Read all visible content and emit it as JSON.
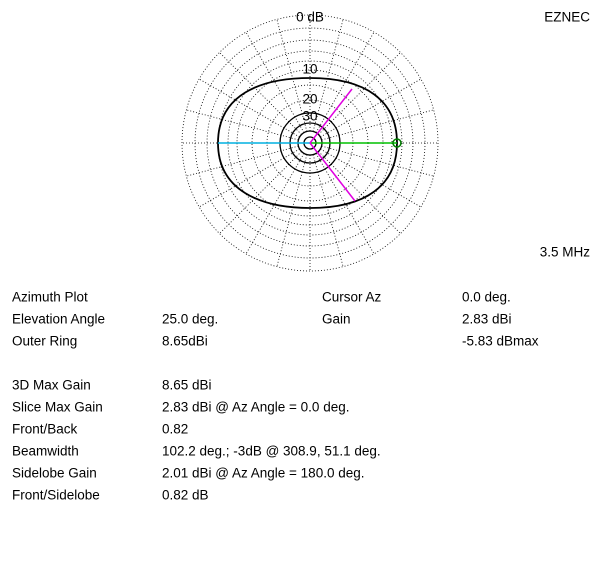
{
  "header": {
    "program": "EZNEC",
    "frequency": "3.5 MHz"
  },
  "plot": {
    "ring_labels": [
      "0 dB",
      "10",
      "20",
      "30"
    ]
  },
  "cursor_block": {
    "left": [
      {
        "label": "Azimuth Plot"
      },
      {
        "label": "Elevation Angle",
        "value": "25.0 deg."
      },
      {
        "label": "Outer Ring",
        "value": "8.65dBi"
      }
    ],
    "right": [
      {
        "label": "Cursor Az",
        "value": "0.0 deg."
      },
      {
        "label": "Gain",
        "value": "2.83 dBi"
      },
      {
        "value": "-5.83 dBmax"
      }
    ]
  },
  "summary": [
    {
      "label": "3D Max Gain",
      "value": "8.65 dBi"
    },
    {
      "label": "Slice Max Gain",
      "value": "2.83 dBi @ Az Angle = 0.0 deg."
    },
    {
      "label": "Front/Back",
      "value": "0.82"
    },
    {
      "label": "Beamwidth",
      "value": "102.2 deg.; -3dB @ 308.9, 51.1 deg."
    },
    {
      "label": "Sidelobe Gain",
      "value": "2.01 dBi @ Az Angle = 180.0 deg."
    },
    {
      "label": "Front/Sidelobe",
      "value": "0.82 dB"
    }
  ]
}
